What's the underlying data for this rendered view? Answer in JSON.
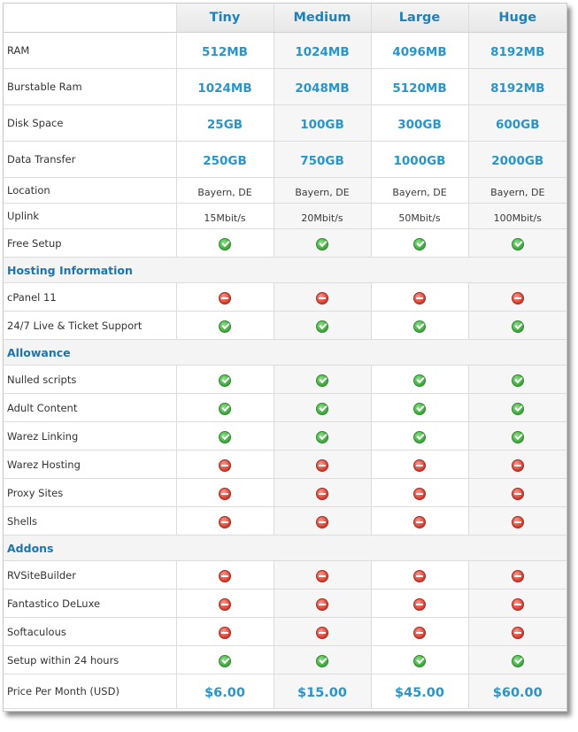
{
  "plans": [
    "Tiny",
    "Medium",
    "Large",
    "Huge"
  ],
  "rows": {
    "ram": {
      "label": "RAM",
      "values": [
        "512MB",
        "1024MB",
        "4096MB",
        "8192MB"
      ]
    },
    "burstable_ram": {
      "label": "Burstable Ram",
      "values": [
        "1024MB",
        "2048MB",
        "5120MB",
        "8192MB"
      ]
    },
    "disk_space": {
      "label": "Disk Space",
      "values": [
        "25GB",
        "100GB",
        "300GB",
        "600GB"
      ]
    },
    "data_transfer": {
      "label": "Data Transfer",
      "values": [
        "250GB",
        "750GB",
        "1000GB",
        "2000GB"
      ]
    },
    "location": {
      "label": "Location",
      "values": [
        "Bayern, DE",
        "Bayern, DE",
        "Bayern, DE",
        "Bayern, DE"
      ]
    },
    "uplink": {
      "label": "Uplink",
      "values": [
        "15Mbit/s",
        "20Mbit/s",
        "50Mbit/s",
        "100Mbit/s"
      ]
    },
    "free_setup": {
      "label": "Free Setup",
      "values": [
        "yes",
        "yes",
        "yes",
        "yes"
      ]
    },
    "cpanel": {
      "label": "cPanel 11",
      "values": [
        "no",
        "no",
        "no",
        "no"
      ]
    },
    "support": {
      "label": "24/7 Live & Ticket Support",
      "values": [
        "yes",
        "yes",
        "yes",
        "yes"
      ]
    },
    "nulled_scripts": {
      "label": "Nulled scripts",
      "values": [
        "yes",
        "yes",
        "yes",
        "yes"
      ]
    },
    "adult_content": {
      "label": "Adult Content",
      "values": [
        "yes",
        "yes",
        "yes",
        "yes"
      ]
    },
    "warez_linking": {
      "label": "Warez Linking",
      "values": [
        "yes",
        "yes",
        "yes",
        "yes"
      ]
    },
    "warez_hosting": {
      "label": "Warez Hosting",
      "values": [
        "no",
        "no",
        "no",
        "no"
      ]
    },
    "proxy_sites": {
      "label": "Proxy Sites",
      "values": [
        "no",
        "no",
        "no",
        "no"
      ]
    },
    "shells": {
      "label": "Shells",
      "values": [
        "no",
        "no",
        "no",
        "no"
      ]
    },
    "rvsitebuilder": {
      "label": "RVSiteBuilder",
      "values": [
        "no",
        "no",
        "no",
        "no"
      ]
    },
    "fantastico": {
      "label": "Fantastico DeLuxe",
      "values": [
        "no",
        "no",
        "no",
        "no"
      ]
    },
    "softaculous": {
      "label": "Softaculous",
      "values": [
        "no",
        "no",
        "no",
        "no"
      ]
    },
    "setup_24h": {
      "label": "Setup within 24 hours",
      "values": [
        "yes",
        "yes",
        "yes",
        "yes"
      ]
    },
    "price": {
      "label": "Price Per Month (USD)",
      "values": [
        "$6.00",
        "$15.00",
        "$45.00",
        "$60.00"
      ]
    }
  },
  "sections": {
    "hosting": "Hosting Information",
    "allowance": "Allowance",
    "addons": "Addons"
  },
  "icons": {
    "yes": "check-circle-icon",
    "no": "minus-circle-icon"
  },
  "colors": {
    "accent": "#2a95c8",
    "header_text": "#2080b8",
    "yes": "#3ca63a",
    "no": "#d23a2c"
  }
}
